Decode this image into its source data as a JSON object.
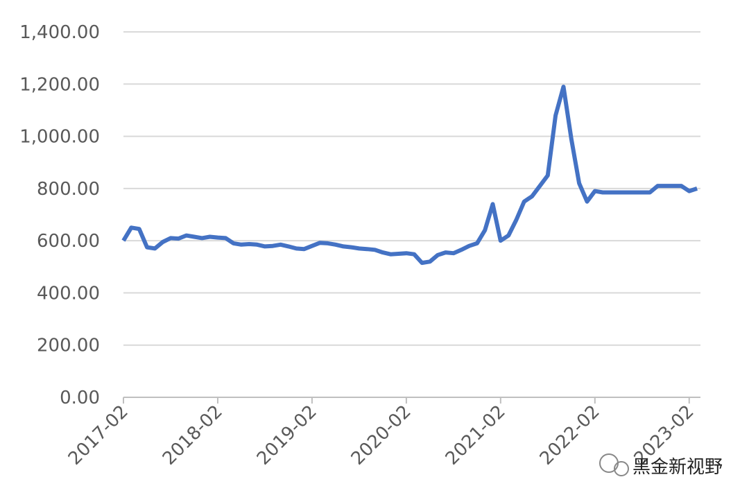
{
  "chart_data": {
    "type": "line",
    "x": [
      "2017-02",
      "2017-03",
      "2017-04",
      "2017-05",
      "2017-06",
      "2017-07",
      "2017-08",
      "2017-09",
      "2017-10",
      "2017-11",
      "2017-12",
      "2018-01",
      "2018-02",
      "2018-03",
      "2018-04",
      "2018-05",
      "2018-06",
      "2018-07",
      "2018-08",
      "2018-09",
      "2018-10",
      "2018-11",
      "2018-12",
      "2019-01",
      "2019-02",
      "2019-03",
      "2019-04",
      "2019-05",
      "2019-06",
      "2019-07",
      "2019-08",
      "2019-09",
      "2019-10",
      "2019-11",
      "2019-12",
      "2020-01",
      "2020-02",
      "2020-03",
      "2020-04",
      "2020-05",
      "2020-06",
      "2020-07",
      "2020-08",
      "2020-09",
      "2020-10",
      "2020-11",
      "2020-12",
      "2021-01",
      "2021-02",
      "2021-03",
      "2021-04",
      "2021-05",
      "2021-06",
      "2021-07",
      "2021-08",
      "2021-09",
      "2021-10",
      "2021-11",
      "2021-12",
      "2022-01",
      "2022-02",
      "2022-03",
      "2022-04",
      "2022-05",
      "2022-06",
      "2022-07",
      "2022-08",
      "2022-09",
      "2022-10",
      "2022-11",
      "2022-12",
      "2023-01",
      "2023-02",
      "2023-03"
    ],
    "series": [
      {
        "color": "#4472c4",
        "values": [
          600,
          650,
          645,
          575,
          570,
          595,
          610,
          608,
          620,
          615,
          610,
          615,
          612,
          610,
          590,
          585,
          587,
          585,
          578,
          580,
          585,
          578,
          570,
          568,
          580,
          592,
          590,
          585,
          578,
          575,
          570,
          568,
          565,
          555,
          548,
          550,
          552,
          548,
          515,
          520,
          545,
          555,
          552,
          565,
          580,
          590,
          640,
          740,
          600,
          620,
          680,
          750,
          770,
          810,
          850,
          1080,
          1190,
          990,
          820,
          750,
          790,
          785,
          785,
          785,
          785,
          785,
          785,
          785,
          810,
          810,
          810,
          810,
          790,
          800
        ]
      }
    ],
    "ylim": [
      0,
      1400
    ],
    "yticks": [
      {
        "value": 0,
        "label": "0.00"
      },
      {
        "value": 200,
        "label": "200.00"
      },
      {
        "value": 400,
        "label": "400.00"
      },
      {
        "value": 600,
        "label": "600.00"
      },
      {
        "value": 800,
        "label": "800.00"
      },
      {
        "value": 1000,
        "label": "1,000.00"
      },
      {
        "value": 1200,
        "label": "1,200.00"
      },
      {
        "value": 1400,
        "label": "1,400.00"
      }
    ],
    "xticks": [
      "2017-02",
      "2018-02",
      "2019-02",
      "2020-02",
      "2021-02",
      "2022-02",
      "2023-02"
    ],
    "grid": true,
    "watermark": "黑金新视野"
  }
}
